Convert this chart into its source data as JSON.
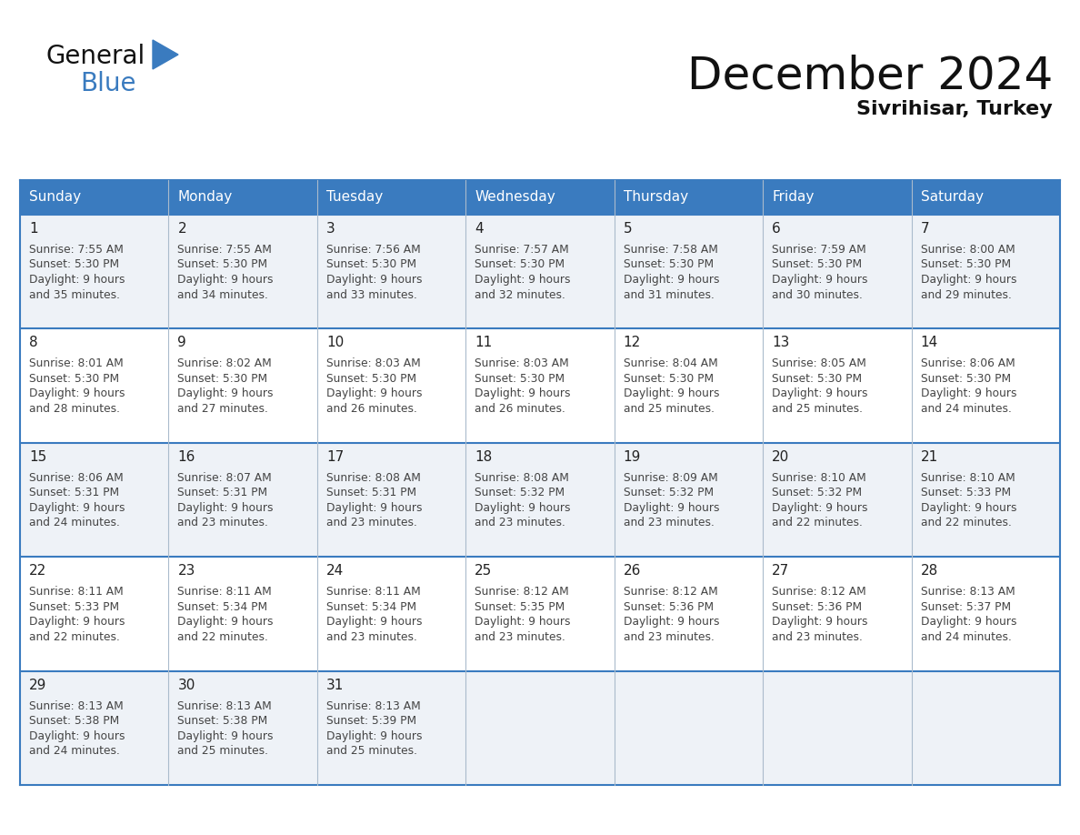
{
  "title": "December 2024",
  "subtitle": "Sivrihisar, Turkey",
  "days_of_week": [
    "Sunday",
    "Monday",
    "Tuesday",
    "Wednesday",
    "Thursday",
    "Friday",
    "Saturday"
  ],
  "header_bg": "#3a7bbf",
  "header_text": "#ffffff",
  "cell_bg_odd": "#eef2f7",
  "cell_bg_even": "#ffffff",
  "border_color": "#3a7bbf",
  "sep_line_color": "#3a7bbf",
  "text_color": "#444444",
  "day_num_color": "#222222",
  "calendar_data": [
    [
      {
        "day": 1,
        "sunrise": "7:55 AM",
        "sunset": "5:30 PM",
        "daylight_hours": 9,
        "daylight_min": 35
      },
      {
        "day": 2,
        "sunrise": "7:55 AM",
        "sunset": "5:30 PM",
        "daylight_hours": 9,
        "daylight_min": 34
      },
      {
        "day": 3,
        "sunrise": "7:56 AM",
        "sunset": "5:30 PM",
        "daylight_hours": 9,
        "daylight_min": 33
      },
      {
        "day": 4,
        "sunrise": "7:57 AM",
        "sunset": "5:30 PM",
        "daylight_hours": 9,
        "daylight_min": 32
      },
      {
        "day": 5,
        "sunrise": "7:58 AM",
        "sunset": "5:30 PM",
        "daylight_hours": 9,
        "daylight_min": 31
      },
      {
        "day": 6,
        "sunrise": "7:59 AM",
        "sunset": "5:30 PM",
        "daylight_hours": 9,
        "daylight_min": 30
      },
      {
        "day": 7,
        "sunrise": "8:00 AM",
        "sunset": "5:30 PM",
        "daylight_hours": 9,
        "daylight_min": 29
      }
    ],
    [
      {
        "day": 8,
        "sunrise": "8:01 AM",
        "sunset": "5:30 PM",
        "daylight_hours": 9,
        "daylight_min": 28
      },
      {
        "day": 9,
        "sunrise": "8:02 AM",
        "sunset": "5:30 PM",
        "daylight_hours": 9,
        "daylight_min": 27
      },
      {
        "day": 10,
        "sunrise": "8:03 AM",
        "sunset": "5:30 PM",
        "daylight_hours": 9,
        "daylight_min": 26
      },
      {
        "day": 11,
        "sunrise": "8:03 AM",
        "sunset": "5:30 PM",
        "daylight_hours": 9,
        "daylight_min": 26
      },
      {
        "day": 12,
        "sunrise": "8:04 AM",
        "sunset": "5:30 PM",
        "daylight_hours": 9,
        "daylight_min": 25
      },
      {
        "day": 13,
        "sunrise": "8:05 AM",
        "sunset": "5:30 PM",
        "daylight_hours": 9,
        "daylight_min": 25
      },
      {
        "day": 14,
        "sunrise": "8:06 AM",
        "sunset": "5:30 PM",
        "daylight_hours": 9,
        "daylight_min": 24
      }
    ],
    [
      {
        "day": 15,
        "sunrise": "8:06 AM",
        "sunset": "5:31 PM",
        "daylight_hours": 9,
        "daylight_min": 24
      },
      {
        "day": 16,
        "sunrise": "8:07 AM",
        "sunset": "5:31 PM",
        "daylight_hours": 9,
        "daylight_min": 23
      },
      {
        "day": 17,
        "sunrise": "8:08 AM",
        "sunset": "5:31 PM",
        "daylight_hours": 9,
        "daylight_min": 23
      },
      {
        "day": 18,
        "sunrise": "8:08 AM",
        "sunset": "5:32 PM",
        "daylight_hours": 9,
        "daylight_min": 23
      },
      {
        "day": 19,
        "sunrise": "8:09 AM",
        "sunset": "5:32 PM",
        "daylight_hours": 9,
        "daylight_min": 23
      },
      {
        "day": 20,
        "sunrise": "8:10 AM",
        "sunset": "5:32 PM",
        "daylight_hours": 9,
        "daylight_min": 22
      },
      {
        "day": 21,
        "sunrise": "8:10 AM",
        "sunset": "5:33 PM",
        "daylight_hours": 9,
        "daylight_min": 22
      }
    ],
    [
      {
        "day": 22,
        "sunrise": "8:11 AM",
        "sunset": "5:33 PM",
        "daylight_hours": 9,
        "daylight_min": 22
      },
      {
        "day": 23,
        "sunrise": "8:11 AM",
        "sunset": "5:34 PM",
        "daylight_hours": 9,
        "daylight_min": 22
      },
      {
        "day": 24,
        "sunrise": "8:11 AM",
        "sunset": "5:34 PM",
        "daylight_hours": 9,
        "daylight_min": 23
      },
      {
        "day": 25,
        "sunrise": "8:12 AM",
        "sunset": "5:35 PM",
        "daylight_hours": 9,
        "daylight_min": 23
      },
      {
        "day": 26,
        "sunrise": "8:12 AM",
        "sunset": "5:36 PM",
        "daylight_hours": 9,
        "daylight_min": 23
      },
      {
        "day": 27,
        "sunrise": "8:12 AM",
        "sunset": "5:36 PM",
        "daylight_hours": 9,
        "daylight_min": 23
      },
      {
        "day": 28,
        "sunrise": "8:13 AM",
        "sunset": "5:37 PM",
        "daylight_hours": 9,
        "daylight_min": 24
      }
    ],
    [
      {
        "day": 29,
        "sunrise": "8:13 AM",
        "sunset": "5:38 PM",
        "daylight_hours": 9,
        "daylight_min": 24
      },
      {
        "day": 30,
        "sunrise": "8:13 AM",
        "sunset": "5:38 PM",
        "daylight_hours": 9,
        "daylight_min": 25
      },
      {
        "day": 31,
        "sunrise": "8:13 AM",
        "sunset": "5:39 PM",
        "daylight_hours": 9,
        "daylight_min": 25
      },
      null,
      null,
      null,
      null
    ]
  ]
}
